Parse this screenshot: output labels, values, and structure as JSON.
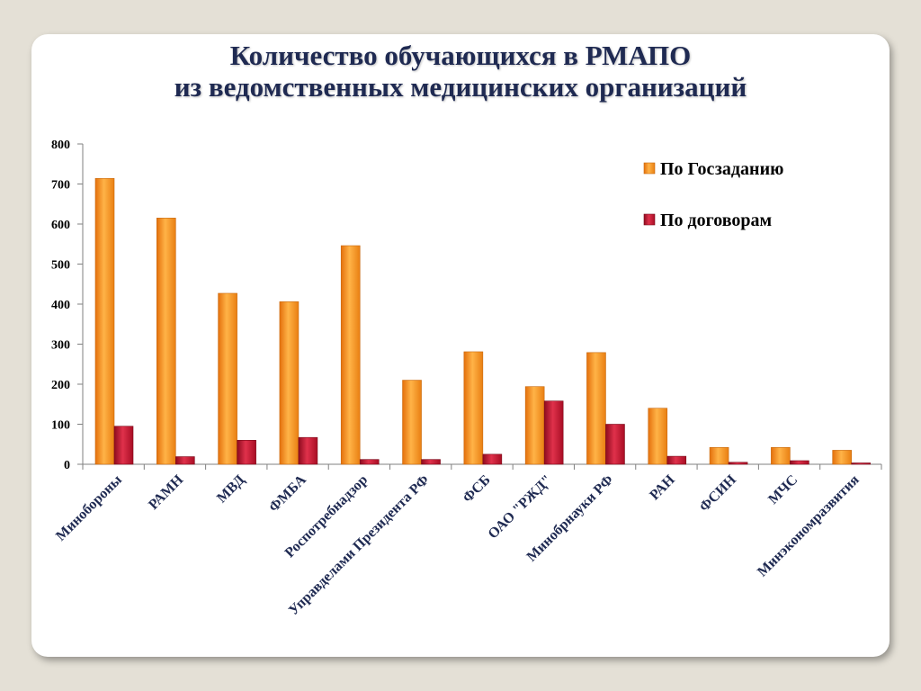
{
  "title": {
    "line1": "Количество обучающихся в РМАПО",
    "line2": "из ведомственных медицинских организаций"
  },
  "colors": {
    "series_1": "#f7931e",
    "series_2": "#c0102a",
    "axis": "#808080"
  },
  "chart_data": {
    "type": "bar",
    "categories": [
      "Минобороны",
      "РАМН",
      "МВД",
      "ФМБА",
      "Роспотребнадзор",
      "Управделами Президента РФ",
      "ФСБ",
      "ОАО \"РЖД\"",
      "Минобрнауки РФ",
      "РАН",
      "ФСИН",
      "МЧС",
      "Минэкономразвития"
    ],
    "series": [
      {
        "name": "По Госзаданию",
        "values": [
          714,
          615,
          427,
          406,
          546,
          210,
          281,
          194,
          279,
          140,
          42,
          42,
          35
        ]
      },
      {
        "name": "По договорам",
        "values": [
          95,
          19,
          60,
          67,
          12,
          12,
          25,
          158,
          100,
          20,
          5,
          9,
          2
        ]
      }
    ],
    "ylim": [
      0,
      800
    ],
    "yticks": [
      0,
      100,
      200,
      300,
      400,
      500,
      600,
      700,
      800
    ],
    "legend_position": "top-right",
    "grid": false
  }
}
